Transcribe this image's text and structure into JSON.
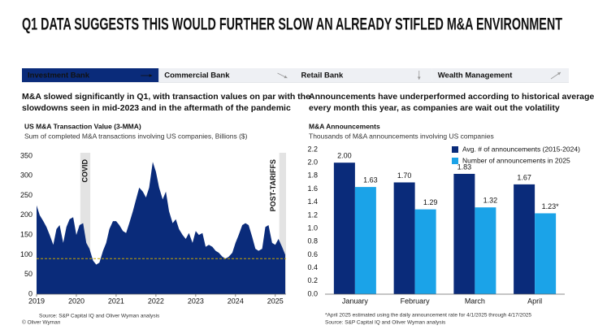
{
  "header": {
    "title": "Q1 DATA SUGGESTS THIS WOULD FURTHER SLOW AN ALREADY STIFLED M&A ENVIRONMENT"
  },
  "tabs": [
    "Investment Bank",
    "Commercial Bank",
    "Retail Bank",
    "Wealth Management"
  ],
  "panels": [
    {
      "headline": [
        "M&A slowed significantly in Q1, with transaction values on par with the",
        "slowdowns seen in mid-2023 and in the aftermath of the pandemic"
      ],
      "footnotes": [
        "Source: S&P Capital IQ and Oliver Wyman analysis"
      ]
    },
    {
      "headline": [
        "Announcements have underperformed according to historical averages",
        "every month this year, as companies are wait out the volatility"
      ],
      "footnotes": [
        "*April 2025 estimated using the daily announcement rate for 4/1/2025 through 4/17/2025",
        "Source: S&P Capital IQ and Oliver Wyman analysis"
      ]
    }
  ],
  "copyright": "© Oliver Wyman",
  "chart_data": [
    {
      "type": "area",
      "title": "US M&A Transaction Value (3-MMA)",
      "subtitle": "Sum of completed M&A transactions involving US companies, Billions ($)",
      "color": "#0a2b7a",
      "x": [
        2019,
        2019.08,
        2019.17,
        2019.25,
        2019.33,
        2019.42,
        2019.5,
        2019.58,
        2019.67,
        2019.75,
        2019.83,
        2019.92,
        2020,
        2020.08,
        2020.17,
        2020.25,
        2020.33,
        2020.42,
        2020.5,
        2020.58,
        2020.67,
        2020.75,
        2020.83,
        2020.92,
        2021,
        2021.08,
        2021.17,
        2021.25,
        2021.33,
        2021.42,
        2021.5,
        2021.58,
        2021.67,
        2021.75,
        2021.83,
        2021.92,
        2022,
        2022.08,
        2022.17,
        2022.25,
        2022.33,
        2022.42,
        2022.5,
        2022.58,
        2022.67,
        2022.75,
        2022.83,
        2022.92,
        2023,
        2023.08,
        2023.17,
        2023.25,
        2023.33,
        2023.42,
        2023.5,
        2023.58,
        2023.67,
        2023.75,
        2023.83,
        2023.92,
        2024,
        2024.08,
        2024.17,
        2024.25,
        2024.33,
        2024.42,
        2024.5,
        2024.58,
        2024.67,
        2024.75,
        2024.83,
        2024.92,
        2025,
        2025.08,
        2025.17,
        2025.25
      ],
      "values": [
        225,
        200,
        185,
        170,
        150,
        125,
        165,
        175,
        130,
        170,
        190,
        195,
        150,
        175,
        180,
        130,
        115,
        85,
        75,
        80,
        110,
        130,
        165,
        185,
        185,
        175,
        160,
        155,
        180,
        210,
        240,
        270,
        260,
        245,
        270,
        335,
        310,
        270,
        240,
        260,
        210,
        180,
        190,
        165,
        150,
        140,
        155,
        130,
        160,
        150,
        155,
        120,
        125,
        120,
        110,
        105,
        95,
        90,
        95,
        105,
        130,
        150,
        175,
        180,
        175,
        145,
        115,
        110,
        115,
        170,
        175,
        130,
        125,
        140,
        120,
        100
      ],
      "xlim": [
        2019,
        2025.27
      ],
      "ylim": [
        0,
        350
      ],
      "xticks": [
        2019,
        2020,
        2021,
        2022,
        2023,
        2024,
        2025
      ],
      "yticks": [
        0,
        50,
        100,
        150,
        200,
        250,
        300,
        350
      ],
      "reference_line": {
        "value": 90,
        "color": "#c9a800"
      },
      "annotations": [
        {
          "text": "COVID",
          "x": [
            2020.1,
            2020.35
          ]
        },
        {
          "text": "POST-TARIFFS",
          "x": [
            2025.1,
            2025.27
          ]
        }
      ]
    },
    {
      "type": "bar",
      "title": "M&A Announcements",
      "subtitle": "Thousands of M&A announcements involving US companies",
      "categories": [
        "January",
        "February",
        "March",
        "April"
      ],
      "series": [
        {
          "name": "Avg. # of announcements (2015-2024)",
          "color": "#0a2b7a",
          "values": [
            2.0,
            1.7,
            1.83,
            1.67
          ],
          "value_labels": [
            "2.00",
            "1.70",
            "1.83",
            "1.67"
          ]
        },
        {
          "name": "Number of announcements in 2025",
          "color": "#1ba3e8",
          "values": [
            1.63,
            1.29,
            1.32,
            1.23
          ],
          "value_labels": [
            "1.63",
            "1.29",
            "1.32",
            "1.23*"
          ]
        }
      ],
      "ylim": [
        0,
        2.2
      ],
      "yticks": [
        {
          "value": 0,
          "label": "0.0"
        },
        0.2,
        0.4,
        0.6,
        0.8,
        {
          "value": 1,
          "label": "1.0"
        },
        1.2,
        1.4,
        1.6,
        1.8,
        {
          "value": 2,
          "label": "2.0"
        },
        2.2
      ],
      "legend": "top-right"
    }
  ]
}
